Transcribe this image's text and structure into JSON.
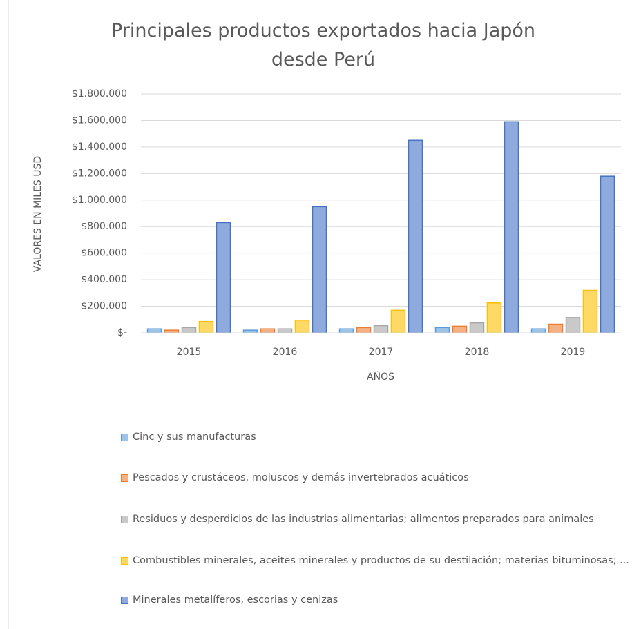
{
  "chart_data": {
    "type": "bar",
    "title": "Principales productos exportados hacia Japón desde Perú",
    "x_label": "AÑOS",
    "y_label": "VALORES EN MILES USD",
    "categories": [
      "2015",
      "2016",
      "2017",
      "2018",
      "2019"
    ],
    "series": [
      {
        "name": "Cinc y sus manufacturas",
        "color": "#9dc3e6",
        "edgecolor": "#5b9bd5",
        "values": [
          30000,
          20000,
          30000,
          40000,
          30000
        ]
      },
      {
        "name": "Pescados y crustáceos, moluscos y demás invertebrados acuáticos",
        "color": "#f4b183",
        "edgecolor": "#ed7d31",
        "values": [
          20000,
          30000,
          40000,
          50000,
          65000
        ]
      },
      {
        "name": "Residuos y desperdicios de las industrias alimentarias; alimentos preparados para animales",
        "color": "#c9c9c9",
        "edgecolor": "#a5a5a5",
        "values": [
          40000,
          30000,
          55000,
          75000,
          115000
        ]
      },
      {
        "name": "Combustibles minerales, aceites minerales y productos de su destilación; materias bituminosas; ...",
        "color": "#ffd966",
        "edgecolor": "#ffc000",
        "values": [
          85000,
          95000,
          170000,
          225000,
          320000
        ]
      },
      {
        "name": "Minerales metalíferos, escorias y cenizas",
        "color": "#8faadc",
        "edgecolor": "#4472c4",
        "values": [
          830000,
          950000,
          1450000,
          1590000,
          1180000
        ]
      }
    ],
    "ylim": [
      0,
      1800000
    ],
    "yticks": [
      {
        "value": 0,
        "label": "$-"
      },
      {
        "value": 200000,
        "label": "$200.000"
      },
      {
        "value": 400000,
        "label": "$400.000"
      },
      {
        "value": 600000,
        "label": "$600.000"
      },
      {
        "value": 800000,
        "label": "$800.000"
      },
      {
        "value": 1000000,
        "label": "$1.000.000"
      },
      {
        "value": 1200000,
        "label": "$1.200.000"
      },
      {
        "value": 1400000,
        "label": "$1.400.000"
      },
      {
        "value": 1600000,
        "label": "$1.600.000"
      },
      {
        "value": 1800000,
        "label": "$1.800.000"
      }
    ],
    "grid": true,
    "legend": "bottom"
  }
}
